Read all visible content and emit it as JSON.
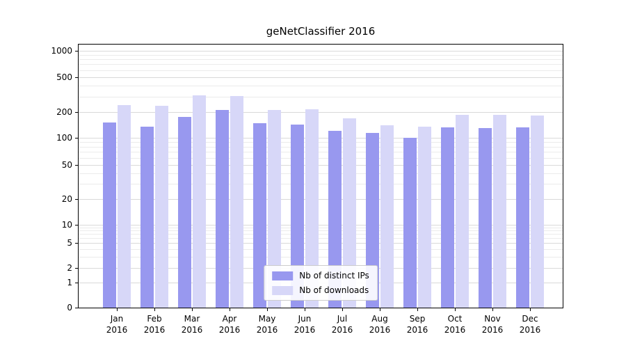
{
  "chart_data": {
    "type": "bar",
    "title": "geNetClassifier 2016",
    "categories": [
      "Jan 2016",
      "Feb 2016",
      "Mar 2016",
      "Apr 2016",
      "May 2016",
      "Jun 2016",
      "Jul 2016",
      "Aug 2016",
      "Sep 2016",
      "Oct 2016",
      "Nov 2016",
      "Dec 2016"
    ],
    "series": [
      {
        "name": "Nb of distinct IPs",
        "color": "#9898ef",
        "values": [
          152,
          136,
          175,
          210,
          148,
          143,
          120,
          114,
          101,
          133,
          130,
          132
        ]
      },
      {
        "name": "Nb of downloads",
        "color": "#d7d7f8",
        "values": [
          240,
          235,
          310,
          305,
          210,
          215,
          170,
          139,
          136,
          186,
          184,
          182
        ]
      }
    ],
    "y_axis": {
      "scale": "symlog",
      "ticks": [
        0,
        1,
        2,
        5,
        10,
        20,
        50,
        100,
        200,
        500,
        1000
      ]
    },
    "grid": "horizontal log major and minor gridlines",
    "legend": {
      "position": "bottom-center-inside",
      "entries": [
        "Nb of distinct IPs",
        "Nb of downloads"
      ]
    }
  }
}
